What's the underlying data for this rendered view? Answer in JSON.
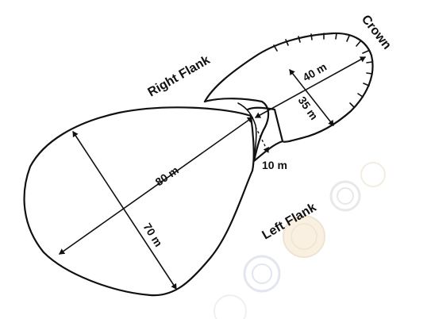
{
  "labels": {
    "crown": "Crown",
    "right_flank": "Right Flank",
    "left_flank": "Left Flank"
  },
  "dimensions": {
    "scarp_length": "40 m",
    "scarp_width": "35 m",
    "neck_width": "10 m",
    "deposit_length": "80 m",
    "deposit_width": "70 m"
  },
  "icons": [
    "watermark-seal-icon"
  ]
}
